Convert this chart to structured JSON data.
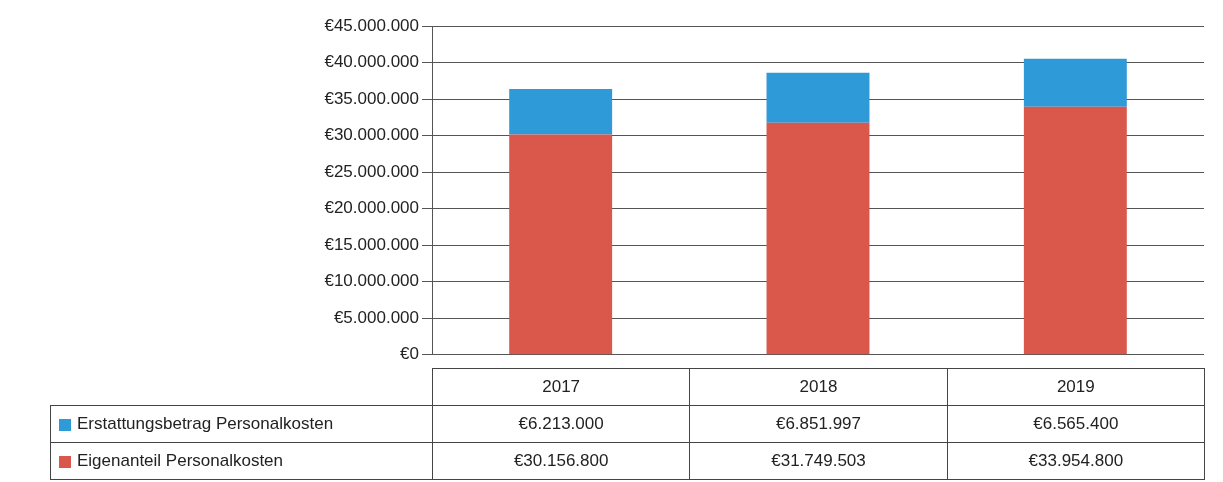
{
  "chart_data": {
    "type": "bar",
    "stacked": true,
    "categories": [
      "2017",
      "2018",
      "2019"
    ],
    "series": [
      {
        "name": "Eigenanteil Personalkosten",
        "color": "#d9584b",
        "values": [
          30156800,
          31749503,
          33954800
        ],
        "value_labels": [
          "€30.156.800",
          "€31.749.503",
          "€33.954.800"
        ]
      },
      {
        "name": "Erstattungsbetrag Personalkosten",
        "color": "#2f9ad8",
        "values": [
          6213000,
          6851997,
          6565400
        ],
        "value_labels": [
          "€6.213.000",
          "€6.851.997",
          "€6.565.400"
        ]
      }
    ],
    "ylim": [
      0,
      45000000
    ],
    "yticks": [
      {
        "value": 0,
        "label": "€0"
      },
      {
        "value": 5000000,
        "label": "€5.000.000"
      },
      {
        "value": 10000000,
        "label": "€10.000.000"
      },
      {
        "value": 15000000,
        "label": "€15.000.000"
      },
      {
        "value": 20000000,
        "label": "€20.000.000"
      },
      {
        "value": 25000000,
        "label": "€25.000.000"
      },
      {
        "value": 30000000,
        "label": "€30.000.000"
      },
      {
        "value": 35000000,
        "label": "€35.000.000"
      },
      {
        "value": 40000000,
        "label": "€40.000.000"
      },
      {
        "value": 45000000,
        "label": "€45.000.000"
      }
    ],
    "grid": "y",
    "legend": "bottom"
  }
}
